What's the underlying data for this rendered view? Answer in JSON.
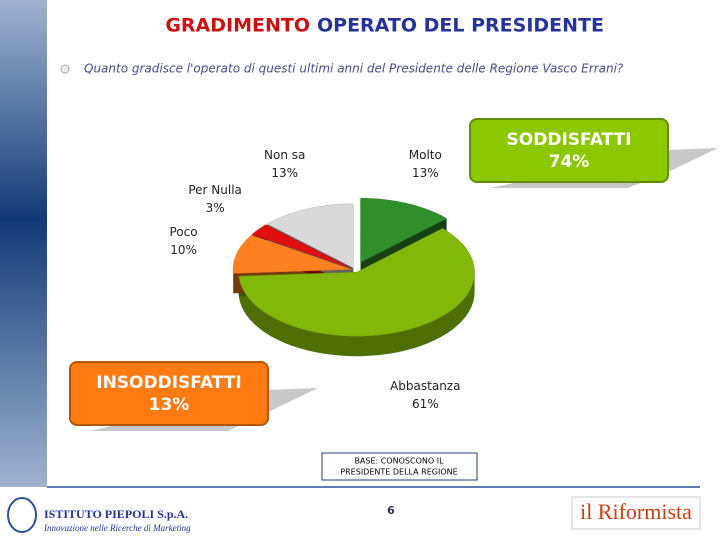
{
  "header": {
    "title_highlight": "GRADIMENTO",
    "title_rest": "OPERATO DEL PRESIDENTE",
    "question": "Quanto gradisce l'operato di questi ultimi anni del Presidente delle Regione Vasco Errani?"
  },
  "chart_data": {
    "type": "pie",
    "categories": [
      "Molto",
      "Abbastanza",
      "Poco",
      "Per Nulla",
      "Non sa"
    ],
    "values": [
      13,
      61,
      10,
      3,
      13
    ],
    "value_labels": [
      "13%",
      "61%",
      "10%",
      "3%",
      "13%"
    ],
    "colors": [
      "#2f8f2a",
      "#82b80a",
      "#ff8020",
      "#e01010",
      "#d9d9d9"
    ]
  },
  "callouts": [
    {
      "label": "SODDISFATTI",
      "value_label": "74%",
      "color": "#8cc800"
    },
    {
      "label": "INSODDISFATTI",
      "value_label": "13%",
      "color": "#ff7a10"
    }
  ],
  "base_note": [
    "BASE: CONOSCONO IL",
    "PRESIDENTE DELLA REGIONE"
  ],
  "footer": {
    "page_number": 6,
    "company": "ISTITUTO PIEPOLI S.p.A.",
    "tagline": "Innovazione nelle Ricerche di Marketing",
    "partner": "il Riformista"
  }
}
